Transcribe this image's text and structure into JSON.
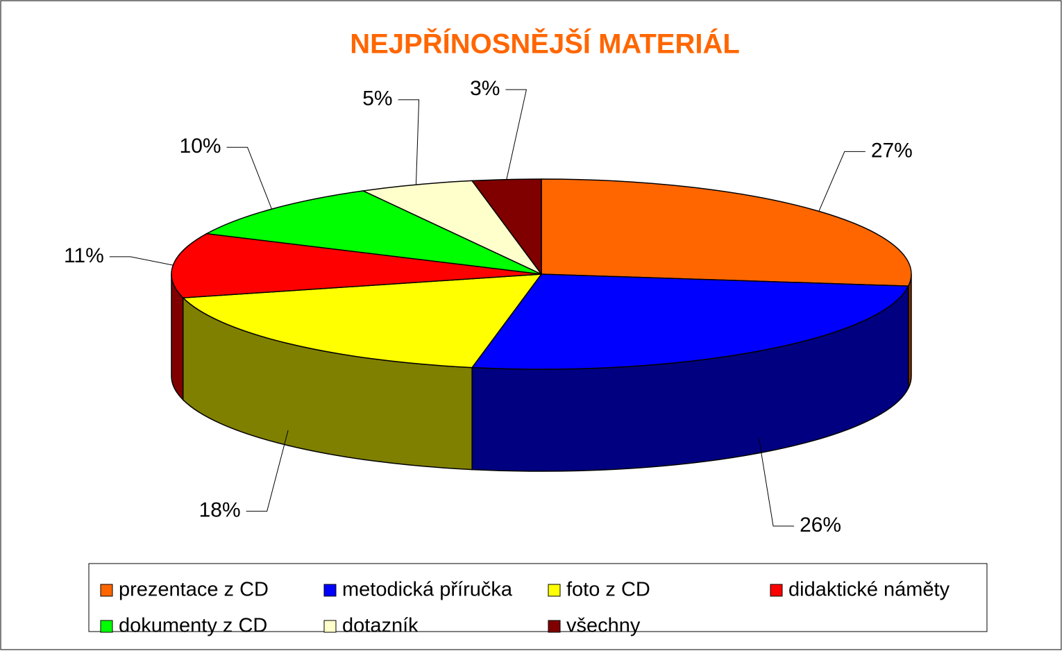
{
  "chart_data": {
    "type": "pie3d",
    "title": "NEJPŘÍNOSNĚJŠÍ MATERIÁL",
    "categories": [
      "prezentace z CD",
      "metodická příručka",
      "foto z CD",
      "didaktické náměty",
      "dokumenty z CD",
      "dotazník",
      "všechny"
    ],
    "values": [
      27,
      26,
      18,
      11,
      10,
      5,
      3
    ],
    "value_labels": [
      "27%",
      "26%",
      "18%",
      "11%",
      "10%",
      "5%",
      "3%"
    ],
    "colors": [
      "#ff6600",
      "#0000ff",
      "#ffff00",
      "#ff0000",
      "#00ff00",
      "#ffffcc",
      "#800000"
    ],
    "legend": "bottom"
  }
}
